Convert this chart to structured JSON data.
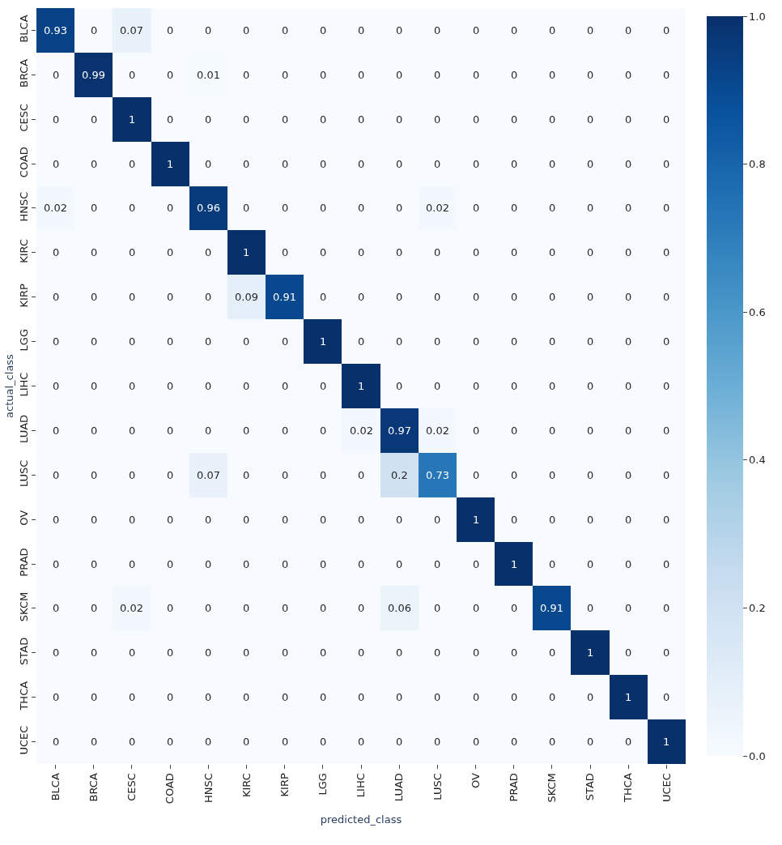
{
  "chart_data": {
    "type": "heatmap",
    "xlabel": "predicted_class",
    "ylabel": "actual_class",
    "categories": [
      "BLCA",
      "BRCA",
      "CESC",
      "COAD",
      "HNSC",
      "KIRC",
      "KIRP",
      "LGG",
      "LIHC",
      "LUAD",
      "LUSC",
      "OV",
      "PRAD",
      "SKCM",
      "STAD",
      "THCA",
      "UCEC"
    ],
    "y_categories": [
      "BLCA",
      "BRCA",
      "CESC",
      "COAD",
      "HNSC",
      "KIRC",
      "KIRP",
      "LGG",
      "LIHC",
      "LUAD",
      "LUSC",
      "OV",
      "PRAD",
      "SKCM",
      "STAD",
      "THCA",
      "UCEC"
    ],
    "cells": [
      [
        0.93,
        0,
        0.07,
        0,
        0,
        0,
        0,
        0,
        0,
        0,
        0,
        0,
        0,
        0,
        0,
        0,
        0
      ],
      [
        0,
        0.99,
        0,
        0,
        0.01,
        0,
        0,
        0,
        0,
        0,
        0,
        0,
        0,
        0,
        0,
        0,
        0
      ],
      [
        0,
        0,
        1,
        0,
        0,
        0,
        0,
        0,
        0,
        0,
        0,
        0,
        0,
        0,
        0,
        0,
        0
      ],
      [
        0,
        0,
        0,
        1,
        0,
        0,
        0,
        0,
        0,
        0,
        0,
        0,
        0,
        0,
        0,
        0,
        0
      ],
      [
        0.02,
        0,
        0,
        0,
        0.96,
        0,
        0,
        0,
        0,
        0,
        0.02,
        0,
        0,
        0,
        0,
        0,
        0
      ],
      [
        0,
        0,
        0,
        0,
        0,
        1,
        0,
        0,
        0,
        0,
        0,
        0,
        0,
        0,
        0,
        0,
        0
      ],
      [
        0,
        0,
        0,
        0,
        0,
        0.09,
        0.91,
        0,
        0,
        0,
        0,
        0,
        0,
        0,
        0,
        0,
        0
      ],
      [
        0,
        0,
        0,
        0,
        0,
        0,
        0,
        1,
        0,
        0,
        0,
        0,
        0,
        0,
        0,
        0,
        0
      ],
      [
        0,
        0,
        0,
        0,
        0,
        0,
        0,
        0,
        1,
        0,
        0,
        0,
        0,
        0,
        0,
        0,
        0
      ],
      [
        0,
        0,
        0,
        0,
        0,
        0,
        0,
        0,
        0.02,
        0.97,
        0.02,
        0,
        0,
        0,
        0,
        0,
        0
      ],
      [
        0,
        0,
        0,
        0,
        0.07,
        0,
        0,
        0,
        0,
        0.2,
        0.73,
        0,
        0,
        0,
        0,
        0,
        0
      ],
      [
        0,
        0,
        0,
        0,
        0,
        0,
        0,
        0,
        0,
        0,
        0,
        1,
        0,
        0,
        0,
        0,
        0
      ],
      [
        0,
        0,
        0,
        0,
        0,
        0,
        0,
        0,
        0,
        0,
        0,
        0,
        1,
        0,
        0,
        0,
        0
      ],
      [
        0,
        0,
        0.02,
        0,
        0,
        0,
        0,
        0,
        0,
        0.06,
        0,
        0,
        0,
        0.91,
        0,
        0,
        0
      ],
      [
        0,
        0,
        0,
        0,
        0,
        0,
        0,
        0,
        0,
        0,
        0,
        0,
        0,
        0,
        1,
        0,
        0
      ],
      [
        0,
        0,
        0,
        0,
        0,
        0,
        0,
        0,
        0,
        0,
        0,
        0,
        0,
        0,
        0,
        1,
        0
      ],
      [
        0,
        0,
        0,
        0,
        0,
        0,
        0,
        0,
        0,
        0,
        0,
        0,
        0,
        0,
        0,
        0,
        1
      ]
    ],
    "data_labels": true,
    "clim": [
      0,
      1
    ],
    "cticks": [
      {
        "value": 0,
        "label": "0.0"
      },
      {
        "value": 0.2,
        "label": "0.2"
      },
      {
        "value": 0.4,
        "label": "0.4"
      },
      {
        "value": 0.6,
        "label": "0.6"
      },
      {
        "value": 0.8,
        "label": "0.8"
      },
      {
        "value": 1,
        "label": "1.0"
      }
    ]
  }
}
